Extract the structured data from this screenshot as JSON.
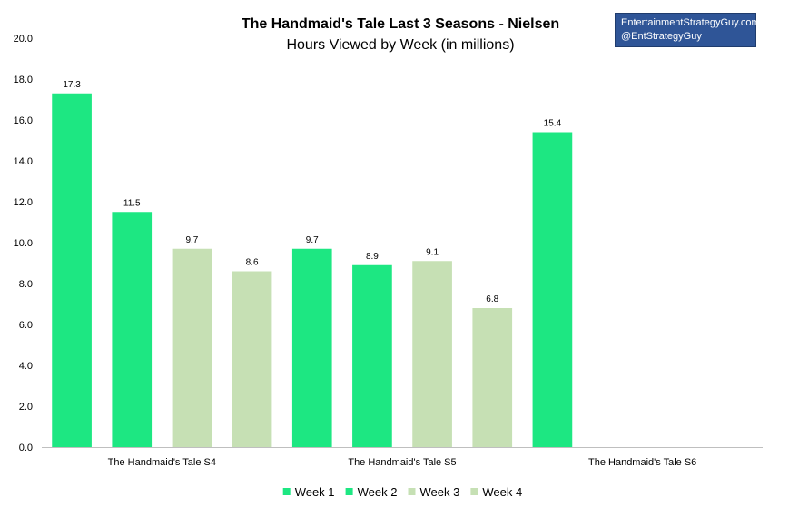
{
  "credit": {
    "line1": "EntertainmentStrategyGuy.com",
    "line2": "@EntStrategyGuy"
  },
  "colors": {
    "week_bright": "#1de782",
    "week_pale": "#c6e0b4",
    "axis": "#bfbfbf"
  },
  "chart_data": {
    "type": "bar",
    "title": "The Handmaid's Tale Last 3 Seasons - Nielsen",
    "subtitle": "Hours Viewed by Week (in millions)",
    "categories": [
      "The Handmaid's Tale S4",
      "The Handmaid's Tale S5",
      "The Handmaid's Tale S6"
    ],
    "series": [
      {
        "name": "Week 1",
        "color": "#1de782",
        "values": [
          17.3,
          9.7,
          15.4
        ]
      },
      {
        "name": "Week 2",
        "color": "#1de782",
        "values": [
          11.5,
          8.9,
          null
        ]
      },
      {
        "name": "Week 3",
        "color": "#c6e0b4",
        "values": [
          9.7,
          9.1,
          null
        ]
      },
      {
        "name": "Week 4",
        "color": "#c6e0b4",
        "values": [
          8.6,
          6.8,
          null
        ]
      }
    ],
    "data_labels": [
      [
        "17.3",
        "9.7",
        "15.4"
      ],
      [
        "11.5",
        "8.9",
        ""
      ],
      [
        "9.7",
        "9.1",
        ""
      ],
      [
        "8.6",
        "6.8",
        ""
      ]
    ],
    "ylim": [
      0,
      20
    ],
    "ytick_step": 2,
    "ytick_labels": [
      "0.0",
      "2.0",
      "4.0",
      "6.0",
      "8.0",
      "10.0",
      "12.0",
      "14.0",
      "16.0",
      "18.0",
      "20.0"
    ],
    "xlabel": "",
    "ylabel": "",
    "grid": false,
    "legend_position": "bottom"
  }
}
